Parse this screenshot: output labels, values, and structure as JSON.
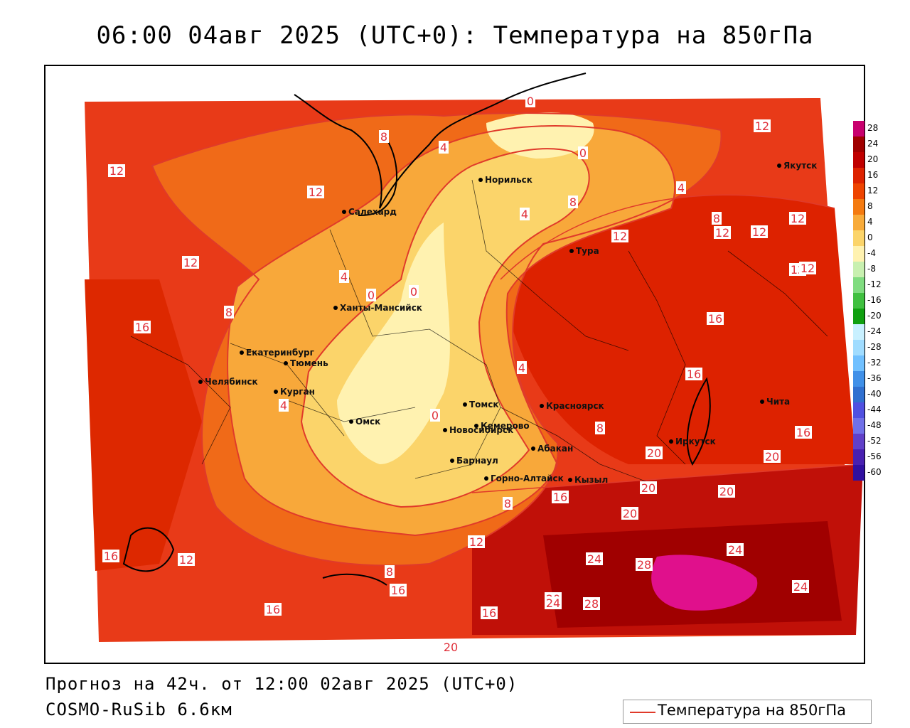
{
  "title": "06:00 04авг 2025 (UTC+0): Температура на 850гПа",
  "forecast_line": "Прогноз на 42ч. от 12:00 02авг 2025 (UTC+0)",
  "model_line": "COSMO-RuSib 6.6км",
  "legend": {
    "label": "Температура на 850гПа",
    "line_color": "#e03a2a"
  },
  "colorbar": {
    "ticks": [
      "28",
      "24",
      "20",
      "16",
      "12",
      "8",
      "4",
      "0",
      "-4",
      "-8",
      "-12",
      "-16",
      "-20",
      "-24",
      "-28",
      "-32",
      "-36",
      "-40",
      "-44",
      "-48",
      "-52",
      "-56",
      "-60"
    ],
    "colors": [
      "#c8006e",
      "#a00000",
      "#c00000",
      "#dd2200",
      "#ee4400",
      "#f47a10",
      "#f8ab3a",
      "#fbd46a",
      "#fff2b0",
      "#c8f0b0",
      "#80dc80",
      "#40c040",
      "#10a010",
      "#c8f0ff",
      "#a0dcff",
      "#70c0ff",
      "#4090e8",
      "#3070d0",
      "#5050e0",
      "#7070e8",
      "#6040c8",
      "#4820b0",
      "#3010a0"
    ]
  },
  "cities": [
    "Салехард",
    "Норильск",
    "Якутск",
    "Тура",
    "Ханты-Мансийск",
    "Екатеринбург",
    "Тюмень",
    "Челябинск",
    "Курган",
    "Омск",
    "Новосибирск",
    "Томск",
    "Кемерово",
    "Красноярск",
    "Барнаул",
    "Абакан",
    "Горно-Алтайск",
    "Кызыл",
    "Иркутск",
    "Чита"
  ],
  "contour_labels": [
    "0",
    "0",
    "0",
    "0",
    "0",
    "4",
    "4",
    "4",
    "4",
    "4",
    "4",
    "8",
    "8",
    "8",
    "8",
    "8",
    "8",
    "8",
    "12",
    "12",
    "12",
    "12",
    "12",
    "12",
    "12",
    "12",
    "12",
    "12",
    "12",
    "12",
    "16",
    "16",
    "16",
    "16",
    "16",
    "16",
    "16",
    "16",
    "16",
    "20",
    "20",
    "20",
    "20",
    "20",
    "20",
    "20",
    "24",
    "24",
    "24",
    "24",
    "28",
    "28"
  ]
}
